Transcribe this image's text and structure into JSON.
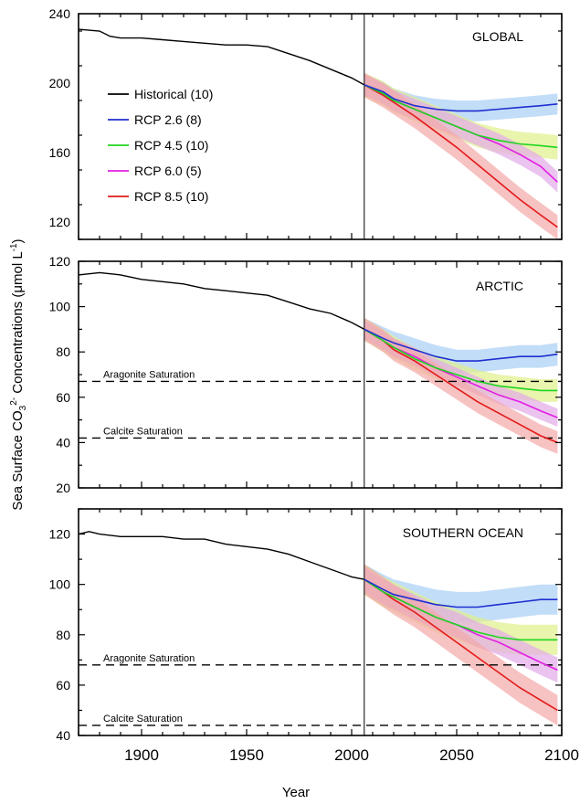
{
  "chart_data": {
    "type": "line",
    "xlabel": "Year",
    "ylabel": "Sea Surface CO",
    "ylabel_sub": "3",
    "ylabel_sup": "2-",
    "ylabel_units_open": " Concentrations (μmol L",
    "ylabel_units_sup": "-1",
    "ylabel_units_close": ")",
    "xlim": [
      1870,
      2100
    ],
    "x_ticks": [
      1900,
      1950,
      2000,
      2050,
      2100
    ],
    "x_tick_labels": [
      "1900",
      "1950",
      "2000",
      "2050",
      "2100"
    ],
    "reference_year": 2006,
    "legend": [
      {
        "label": "Historical (10)",
        "color": "#000000"
      },
      {
        "label": "RCP 2.6 (8)",
        "color": "#1f2fd0"
      },
      {
        "label": "RCP 4.5 (10)",
        "color": "#1fd51f"
      },
      {
        "label": "RCP 6.0 (5)",
        "color": "#e31ee3"
      },
      {
        "label": "RCP 8.5 (10)",
        "color": "#e31a1a"
      }
    ],
    "band_colors": {
      "RCP 2.6": "#a8cff5",
      "RCP 4.5": "#dff08a",
      "RCP 6.0": "#e3aae8",
      "RCP 8.5": "#f3a8a8"
    },
    "panels": [
      {
        "name": "GLOBAL",
        "ylim": [
          110,
          240
        ],
        "y_ticks": [
          120,
          160,
          200,
          240
        ],
        "y_tick_labels": [
          "120",
          "160",
          "200",
          "240"
        ],
        "saturation": [],
        "historical": [
          [
            1870,
            231
          ],
          [
            1880,
            230
          ],
          [
            1885,
            227
          ],
          [
            1890,
            226
          ],
          [
            1900,
            226
          ],
          [
            1910,
            225
          ],
          [
            1920,
            224
          ],
          [
            1930,
            223
          ],
          [
            1940,
            222
          ],
          [
            1950,
            222
          ],
          [
            1960,
            221
          ],
          [
            1970,
            217
          ],
          [
            1980,
            213
          ],
          [
            1990,
            208
          ],
          [
            2000,
            203
          ],
          [
            2006,
            199
          ]
        ],
        "series": [
          {
            "name": "RCP 2.6",
            "band": 6,
            "values": [
              [
                2006,
                199
              ],
              [
                2015,
                195
              ],
              [
                2020,
                191
              ],
              [
                2030,
                187
              ],
              [
                2040,
                185
              ],
              [
                2050,
                184
              ],
              [
                2060,
                184
              ],
              [
                2070,
                185
              ],
              [
                2080,
                186
              ],
              [
                2090,
                187
              ],
              [
                2098,
                188
              ]
            ]
          },
          {
            "name": "RCP 4.5",
            "band": 7,
            "values": [
              [
                2006,
                199
              ],
              [
                2015,
                194
              ],
              [
                2020,
                190
              ],
              [
                2030,
                185
              ],
              [
                2040,
                180
              ],
              [
                2050,
                175
              ],
              [
                2060,
                170
              ],
              [
                2070,
                167
              ],
              [
                2080,
                165
              ],
              [
                2090,
                164
              ],
              [
                2098,
                163
              ]
            ]
          },
          {
            "name": "RCP 6.0",
            "band": 6,
            "values": [
              [
                2006,
                199
              ],
              [
                2015,
                194
              ],
              [
                2020,
                190
              ],
              [
                2030,
                185
              ],
              [
                2040,
                180
              ],
              [
                2050,
                175
              ],
              [
                2060,
                170
              ],
              [
                2070,
                165
              ],
              [
                2080,
                159
              ],
              [
                2090,
                152
              ],
              [
                2098,
                143
              ]
            ]
          },
          {
            "name": "RCP 8.5",
            "band": 7,
            "values": [
              [
                2006,
                199
              ],
              [
                2015,
                193
              ],
              [
                2020,
                189
              ],
              [
                2030,
                181
              ],
              [
                2040,
                172
              ],
              [
                2050,
                163
              ],
              [
                2060,
                153
              ],
              [
                2070,
                143
              ],
              [
                2080,
                133
              ],
              [
                2090,
                124
              ],
              [
                2098,
                117
              ]
            ]
          }
        ]
      },
      {
        "name": "ARCTIC",
        "ylim": [
          20,
          120
        ],
        "y_ticks": [
          20,
          40,
          60,
          80,
          100,
          120
        ],
        "y_tick_labels": [
          "20",
          "40",
          "60",
          "80",
          "100",
          "120"
        ],
        "saturation": [
          {
            "label": "Aragonite Saturation",
            "value": 67
          },
          {
            "label": "Calcite Saturation",
            "value": 42
          }
        ],
        "historical": [
          [
            1870,
            114
          ],
          [
            1880,
            115
          ],
          [
            1890,
            114
          ],
          [
            1900,
            112
          ],
          [
            1910,
            111
          ],
          [
            1920,
            110
          ],
          [
            1930,
            108
          ],
          [
            1940,
            107
          ],
          [
            1950,
            106
          ],
          [
            1960,
            105
          ],
          [
            1970,
            102
          ],
          [
            1980,
            99
          ],
          [
            1990,
            97
          ],
          [
            2000,
            93
          ],
          [
            2006,
            90
          ]
        ],
        "series": [
          {
            "name": "RCP 2.6",
            "band": 5,
            "values": [
              [
                2006,
                90
              ],
              [
                2015,
                86
              ],
              [
                2020,
                84
              ],
              [
                2030,
                81
              ],
              [
                2040,
                78
              ],
              [
                2050,
                76
              ],
              [
                2060,
                76
              ],
              [
                2070,
                77
              ],
              [
                2080,
                78
              ],
              [
                2090,
                78
              ],
              [
                2098,
                79
              ]
            ]
          },
          {
            "name": "RCP 4.5",
            "band": 5,
            "values": [
              [
                2006,
                90
              ],
              [
                2015,
                85
              ],
              [
                2020,
                82
              ],
              [
                2030,
                77
              ],
              [
                2040,
                73
              ],
              [
                2050,
                70
              ],
              [
                2060,
                67
              ],
              [
                2070,
                65
              ],
              [
                2080,
                64
              ],
              [
                2090,
                63
              ],
              [
                2098,
                63
              ]
            ]
          },
          {
            "name": "RCP 6.0",
            "band": 4,
            "values": [
              [
                2006,
                90
              ],
              [
                2015,
                85
              ],
              [
                2020,
                82
              ],
              [
                2030,
                78
              ],
              [
                2040,
                73
              ],
              [
                2050,
                69
              ],
              [
                2060,
                65
              ],
              [
                2070,
                61
              ],
              [
                2080,
                58
              ],
              [
                2090,
                54
              ],
              [
                2098,
                51
              ]
            ]
          },
          {
            "name": "RCP 8.5",
            "band": 5,
            "values": [
              [
                2006,
                90
              ],
              [
                2015,
                85
              ],
              [
                2020,
                81
              ],
              [
                2030,
                76
              ],
              [
                2040,
                70
              ],
              [
                2050,
                64
              ],
              [
                2060,
                58
              ],
              [
                2070,
                53
              ],
              [
                2080,
                48
              ],
              [
                2090,
                43
              ],
              [
                2098,
                40
              ]
            ]
          }
        ]
      },
      {
        "name": "SOUTHERN OCEAN",
        "ylim": [
          40,
          130
        ],
        "y_ticks": [
          40,
          60,
          80,
          100,
          120
        ],
        "y_tick_labels": [
          "40",
          "60",
          "80",
          "100",
          "120"
        ],
        "saturation": [
          {
            "label": "Aragonite Saturation",
            "value": 68
          },
          {
            "label": "Calcite Saturation",
            "value": 44
          }
        ],
        "historical": [
          [
            1870,
            120
          ],
          [
            1875,
            121
          ],
          [
            1880,
            120
          ],
          [
            1890,
            119
          ],
          [
            1900,
            119
          ],
          [
            1910,
            119
          ],
          [
            1920,
            118
          ],
          [
            1930,
            118
          ],
          [
            1940,
            116
          ],
          [
            1950,
            115
          ],
          [
            1960,
            114
          ],
          [
            1970,
            112
          ],
          [
            1980,
            109
          ],
          [
            1990,
            106
          ],
          [
            2000,
            103
          ],
          [
            2006,
            102
          ]
        ],
        "series": [
          {
            "name": "RCP 2.6",
            "band": 6,
            "values": [
              [
                2006,
                102
              ],
              [
                2015,
                98
              ],
              [
                2020,
                96
              ],
              [
                2030,
                94
              ],
              [
                2040,
                92
              ],
              [
                2050,
                91
              ],
              [
                2060,
                91
              ],
              [
                2070,
                92
              ],
              [
                2080,
                93
              ],
              [
                2090,
                94
              ],
              [
                2098,
                94
              ]
            ]
          },
          {
            "name": "RCP 4.5",
            "band": 6,
            "values": [
              [
                2006,
                102
              ],
              [
                2015,
                97
              ],
              [
                2020,
                95
              ],
              [
                2030,
                91
              ],
              [
                2040,
                87
              ],
              [
                2050,
                84
              ],
              [
                2060,
                81
              ],
              [
                2070,
                79
              ],
              [
                2080,
                78
              ],
              [
                2090,
                78
              ],
              [
                2098,
                78
              ]
            ]
          },
          {
            "name": "RCP 6.0",
            "band": 5,
            "values": [
              [
                2006,
                102
              ],
              [
                2015,
                97
              ],
              [
                2020,
                95
              ],
              [
                2030,
                91
              ],
              [
                2040,
                87
              ],
              [
                2050,
                84
              ],
              [
                2060,
                80
              ],
              [
                2070,
                77
              ],
              [
                2080,
                73
              ],
              [
                2090,
                69
              ],
              [
                2098,
                66
              ]
            ]
          },
          {
            "name": "RCP 8.5",
            "band": 6,
            "values": [
              [
                2006,
                102
              ],
              [
                2015,
                97
              ],
              [
                2020,
                94
              ],
              [
                2030,
                89
              ],
              [
                2040,
                83
              ],
              [
                2050,
                77
              ],
              [
                2060,
                71
              ],
              [
                2070,
                65
              ],
              [
                2080,
                59
              ],
              [
                2090,
                54
              ],
              [
                2098,
                50
              ]
            ]
          }
        ]
      }
    ]
  }
}
